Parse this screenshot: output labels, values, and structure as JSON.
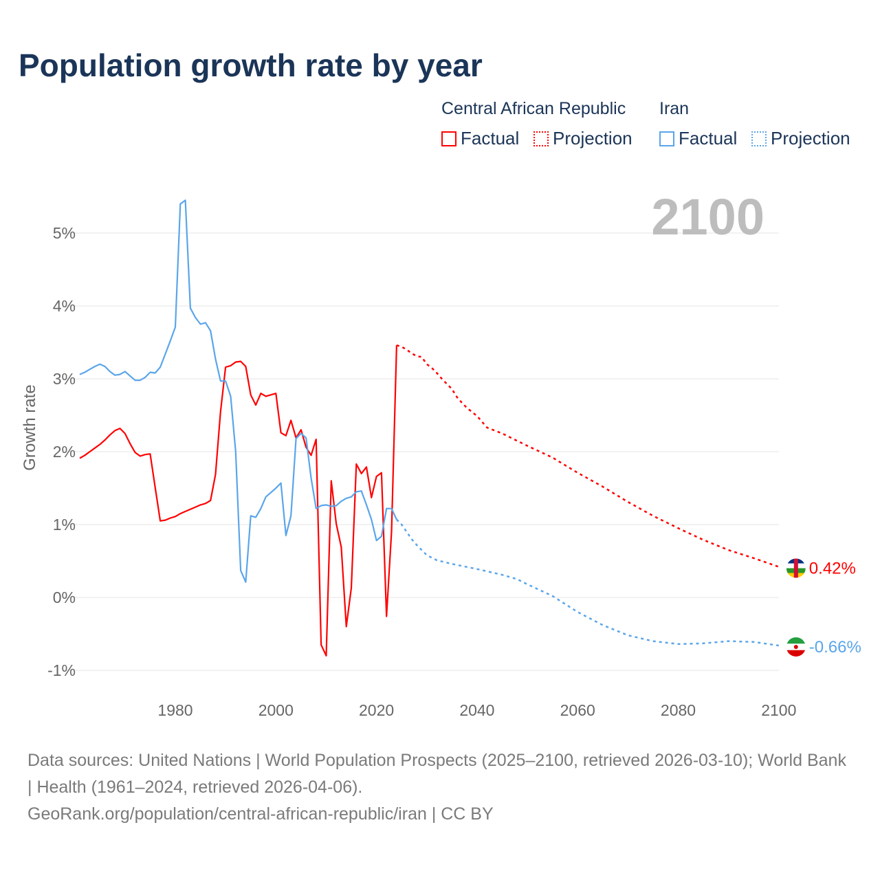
{
  "title": "Population growth rate by year",
  "legend": {
    "groups": [
      {
        "name": "Central African Republic",
        "color": "#ff0000",
        "factual_label": "Factual",
        "projection_label": "Projection"
      },
      {
        "name": "Iran",
        "color": "#5aa5ea",
        "factual_label": "Factual",
        "projection_label": "Projection"
      }
    ]
  },
  "footer": {
    "line1": "Data sources: United Nations | World Population Prospects (2025–2100, retrieved 2026-03-10); World Bank | Health (1961–2024, retrieved 2026-04-06).",
    "line2": "GeoRank.org/population/central-african-republic/iran | CC BY"
  },
  "chart_data": {
    "type": "line",
    "title": "Population growth rate by year",
    "ylabel": "Growth rate",
    "xlabel": "",
    "year_label": "2100",
    "xlim": [
      1961,
      2100
    ],
    "ylim": [
      -1.1,
      5.5
    ],
    "xticks": [
      1980,
      2000,
      2020,
      2040,
      2060,
      2080,
      2100
    ],
    "xtick_labels": [
      "1980",
      "2000",
      "2020",
      "2040",
      "2060",
      "2080",
      "2100"
    ],
    "yticks": [
      -1,
      0,
      1,
      2,
      3,
      4,
      5
    ],
    "ytick_labels": [
      "-1%",
      "0%",
      "1%",
      "2%",
      "3%",
      "4%",
      "5%"
    ],
    "grid": true,
    "legend_position": "top-right",
    "series": [
      {
        "name": "Central African Republic",
        "color": "#ff0000",
        "end_label": "0.42%",
        "factual": {
          "x": [
            1961,
            1962,
            1963,
            1964,
            1965,
            1966,
            1967,
            1968,
            1969,
            1970,
            1971,
            1972,
            1973,
            1974,
            1975,
            1976,
            1977,
            1978,
            1979,
            1980,
            1981,
            1982,
            1983,
            1984,
            1985,
            1986,
            1987,
            1988,
            1989,
            1990,
            1991,
            1992,
            1993,
            1994,
            1995,
            1996,
            1997,
            1998,
            1999,
            2000,
            2001,
            2002,
            2003,
            2004,
            2005,
            2006,
            2007,
            2008,
            2009,
            2010,
            2011,
            2012,
            2013,
            2014,
            2015,
            2016,
            2017,
            2018,
            2019,
            2020,
            2021,
            2022,
            2023,
            2024
          ],
          "y": [
            1.91,
            1.95,
            2.0,
            2.05,
            2.1,
            2.16,
            2.23,
            2.29,
            2.32,
            2.25,
            2.11,
            1.99,
            1.94,
            1.96,
            1.97,
            1.51,
            1.05,
            1.06,
            1.09,
            1.11,
            1.15,
            1.18,
            1.21,
            1.24,
            1.27,
            1.29,
            1.33,
            1.69,
            2.55,
            3.16,
            3.18,
            3.23,
            3.24,
            3.17,
            2.78,
            2.64,
            2.8,
            2.76,
            2.78,
            2.8,
            2.26,
            2.22,
            2.43,
            2.19,
            2.3,
            2.06,
            1.95,
            2.17,
            -0.65,
            -0.8,
            1.6,
            1.01,
            0.69,
            -0.4,
            0.13,
            1.83,
            1.7,
            1.79,
            1.37,
            1.66,
            1.71,
            -0.26,
            0.9,
            3.46
          ]
        },
        "projection": {
          "x": [
            2024,
            2025,
            2026,
            2027,
            2028,
            2029,
            2030,
            2031,
            2032,
            2033,
            2034,
            2035,
            2036,
            2037,
            2038,
            2040,
            2042,
            2045,
            2050,
            2055,
            2060,
            2065,
            2070,
            2075,
            2080,
            2085,
            2090,
            2095,
            2100
          ],
          "y": [
            3.46,
            3.44,
            3.4,
            3.35,
            3.31,
            3.3,
            3.2,
            3.15,
            3.08,
            3.0,
            2.93,
            2.86,
            2.75,
            2.67,
            2.6,
            2.49,
            2.33,
            2.25,
            2.08,
            1.92,
            1.71,
            1.52,
            1.31,
            1.12,
            0.95,
            0.79,
            0.65,
            0.54,
            0.42
          ]
        }
      },
      {
        "name": "Iran",
        "color": "#5aa5ea",
        "end_label": "-0.66%",
        "factual": {
          "x": [
            1961,
            1962,
            1963,
            1964,
            1965,
            1966,
            1967,
            1968,
            1969,
            1970,
            1971,
            1972,
            1973,
            1974,
            1975,
            1976,
            1977,
            1978,
            1979,
            1980,
            1981,
            1982,
            1983,
            1984,
            1985,
            1986,
            1987,
            1988,
            1989,
            1990,
            1991,
            1992,
            1993,
            1994,
            1995,
            1996,
            1997,
            1998,
            1999,
            2000,
            2001,
            2002,
            2003,
            2004,
            2005,
            2006,
            2007,
            2008,
            2009,
            2010,
            2011,
            2012,
            2013,
            2014,
            2015,
            2016,
            2017,
            2018,
            2019,
            2020,
            2021,
            2022,
            2023,
            2024
          ],
          "y": [
            3.06,
            3.09,
            3.13,
            3.17,
            3.2,
            3.17,
            3.1,
            3.05,
            3.06,
            3.1,
            3.04,
            2.98,
            2.98,
            3.02,
            3.09,
            3.08,
            3.16,
            3.34,
            3.52,
            3.71,
            5.4,
            5.45,
            3.97,
            3.84,
            3.75,
            3.77,
            3.66,
            3.27,
            2.97,
            2.97,
            2.76,
            2.0,
            0.37,
            0.21,
            1.12,
            1.1,
            1.22,
            1.38,
            1.44,
            1.5,
            1.57,
            0.85,
            1.12,
            2.18,
            2.25,
            2.19,
            1.64,
            1.22,
            1.26,
            1.27,
            1.25,
            1.26,
            1.32,
            1.36,
            1.38,
            1.45,
            1.46,
            1.27,
            1.07,
            0.78,
            0.84,
            1.22,
            1.22,
            1.07
          ]
        },
        "projection": {
          "x": [
            2024,
            2025,
            2026,
            2027,
            2028,
            2029,
            2030,
            2032,
            2035,
            2040,
            2045,
            2048,
            2050,
            2055,
            2060,
            2065,
            2070,
            2075,
            2080,
            2085,
            2090,
            2095,
            2100
          ],
          "y": [
            1.07,
            1.0,
            0.9,
            0.8,
            0.72,
            0.65,
            0.58,
            0.51,
            0.46,
            0.39,
            0.31,
            0.25,
            0.18,
            0.02,
            -0.2,
            -0.38,
            -0.52,
            -0.6,
            -0.64,
            -0.63,
            -0.6,
            -0.61,
            -0.66
          ]
        }
      }
    ]
  }
}
